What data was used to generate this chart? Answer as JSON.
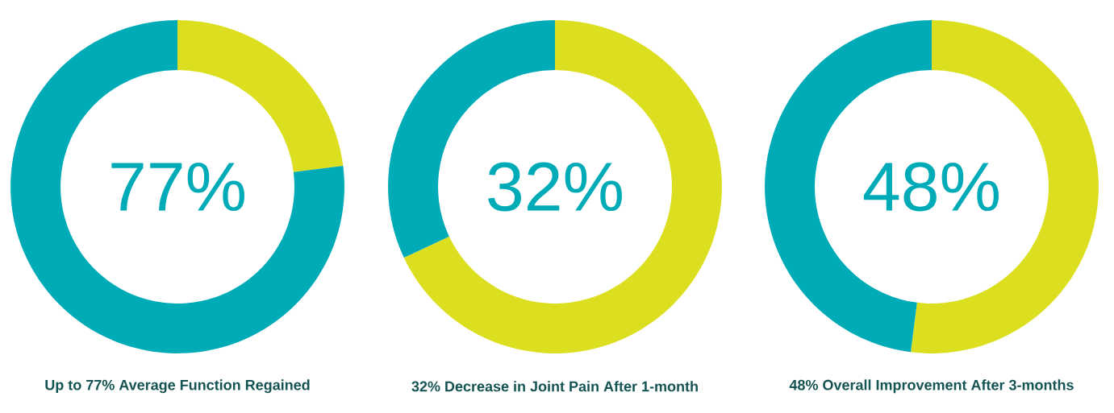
{
  "chart_data": [
    {
      "type": "donut",
      "categories": [
        null,
        null
      ],
      "values": [
        77,
        23
      ],
      "colors": [
        "#00abb8",
        "#dbdf20"
      ],
      "annotations": [
        "77%"
      ],
      "title": "Up to 77% Average Function Regained"
    },
    {
      "type": "donut",
      "categories": [
        null,
        null
      ],
      "values": [
        32,
        68
      ],
      "colors": [
        "#00abb8",
        "#dbdf20"
      ],
      "annotations": [
        "32%"
      ],
      "title": "32% Decrease in Joint Pain After 1-month"
    },
    {
      "type": "donut",
      "categories": [
        null,
        null
      ],
      "values": [
        48,
        52
      ],
      "colors": [
        "#00abb8",
        "#dbdf20"
      ],
      "annotations": [
        "48%"
      ],
      "title": "48% Overall Improvement After 3-months"
    }
  ]
}
